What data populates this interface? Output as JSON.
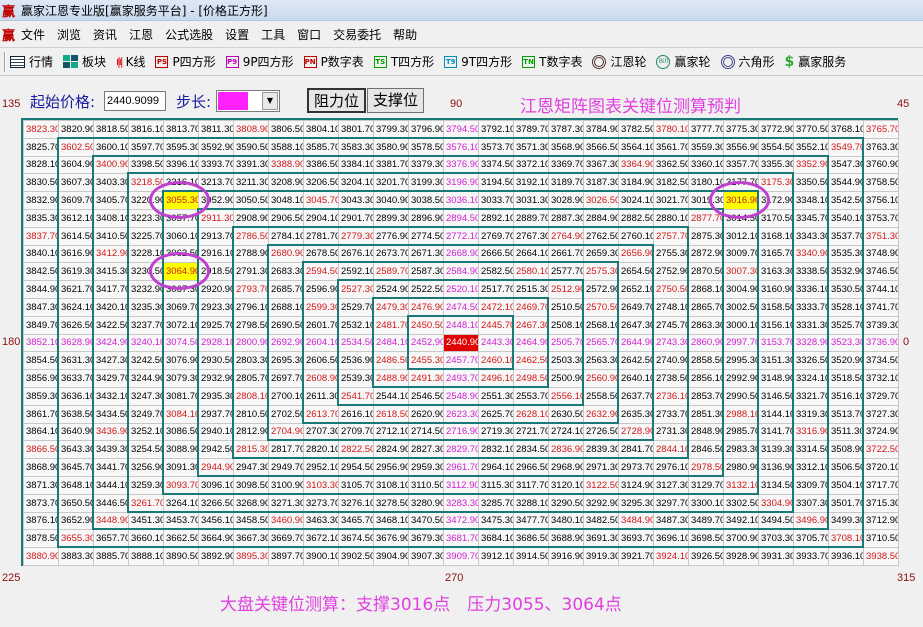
{
  "window": {
    "title": "赢家江恩专业版[赢家服务平台] - [价格正方形]",
    "logo": "赢"
  },
  "menu": [
    "文件",
    "浏览",
    "资讯",
    "江恩",
    "公式选股",
    "设置",
    "工具",
    "窗口",
    "交易委托",
    "帮助"
  ],
  "toolbar": [
    {
      "label": "行情",
      "icon": "table-icon"
    },
    {
      "label": "板块",
      "icon": "blocks-icon"
    },
    {
      "label": "K线",
      "icon": "candlestick-icon"
    },
    {
      "label": "P四方形",
      "icon": "ps-icon",
      "badge": "PS",
      "color": "#c00000"
    },
    {
      "label": "9P四方形",
      "icon": "p9-icon",
      "badge": "P9",
      "color": "#c000c0"
    },
    {
      "label": "P数字表",
      "icon": "pn-icon",
      "badge": "PN",
      "color": "#c00000"
    },
    {
      "label": "T四方形",
      "icon": "ts-icon",
      "badge": "TS",
      "color": "#00a000"
    },
    {
      "label": "9T四方形",
      "icon": "t9-icon",
      "badge": "T9",
      "color": "#0090c0"
    },
    {
      "label": "T数字表",
      "icon": "tn-icon",
      "badge": "TN",
      "color": "#00a000"
    },
    {
      "label": "江恩轮",
      "icon": "gann-wheel-icon"
    },
    {
      "label": "赢家轮",
      "icon": "winner-wheel-icon"
    },
    {
      "label": "六角形",
      "icon": "hexagon-icon"
    },
    {
      "label": "赢家服务",
      "icon": "dollar-icon"
    }
  ],
  "controls": {
    "start_price_label": "起始价格:",
    "start_price_value": "2440.9099",
    "step_label": "步长:",
    "step_color": "#ff22ff",
    "resistance_button": "阻力位",
    "support_button": "支撑位"
  },
  "main_title": "江恩矩阵图表关键位测算预判",
  "angles": {
    "a135": "135",
    "a90": "90",
    "a45": "45",
    "a180": "180",
    "a0": "0",
    "a225": "225",
    "a270": "270",
    "a315": "315"
  },
  "grid": {
    "size": 25,
    "center_price": 2440.9099,
    "step": 2.4,
    "highlighted_values": [
      "3055.3099",
      "3064.9099",
      "3016.9099"
    ],
    "colors": {
      "border": "#1a7878",
      "cardinal": "#d020d0",
      "angle": "#d01818",
      "highlight": "#ffff00",
      "center": "#e00000",
      "circle": "#c040d0"
    }
  },
  "bottom_text": "大盘关键位测算：支撑3016点　压力3055、3064点"
}
